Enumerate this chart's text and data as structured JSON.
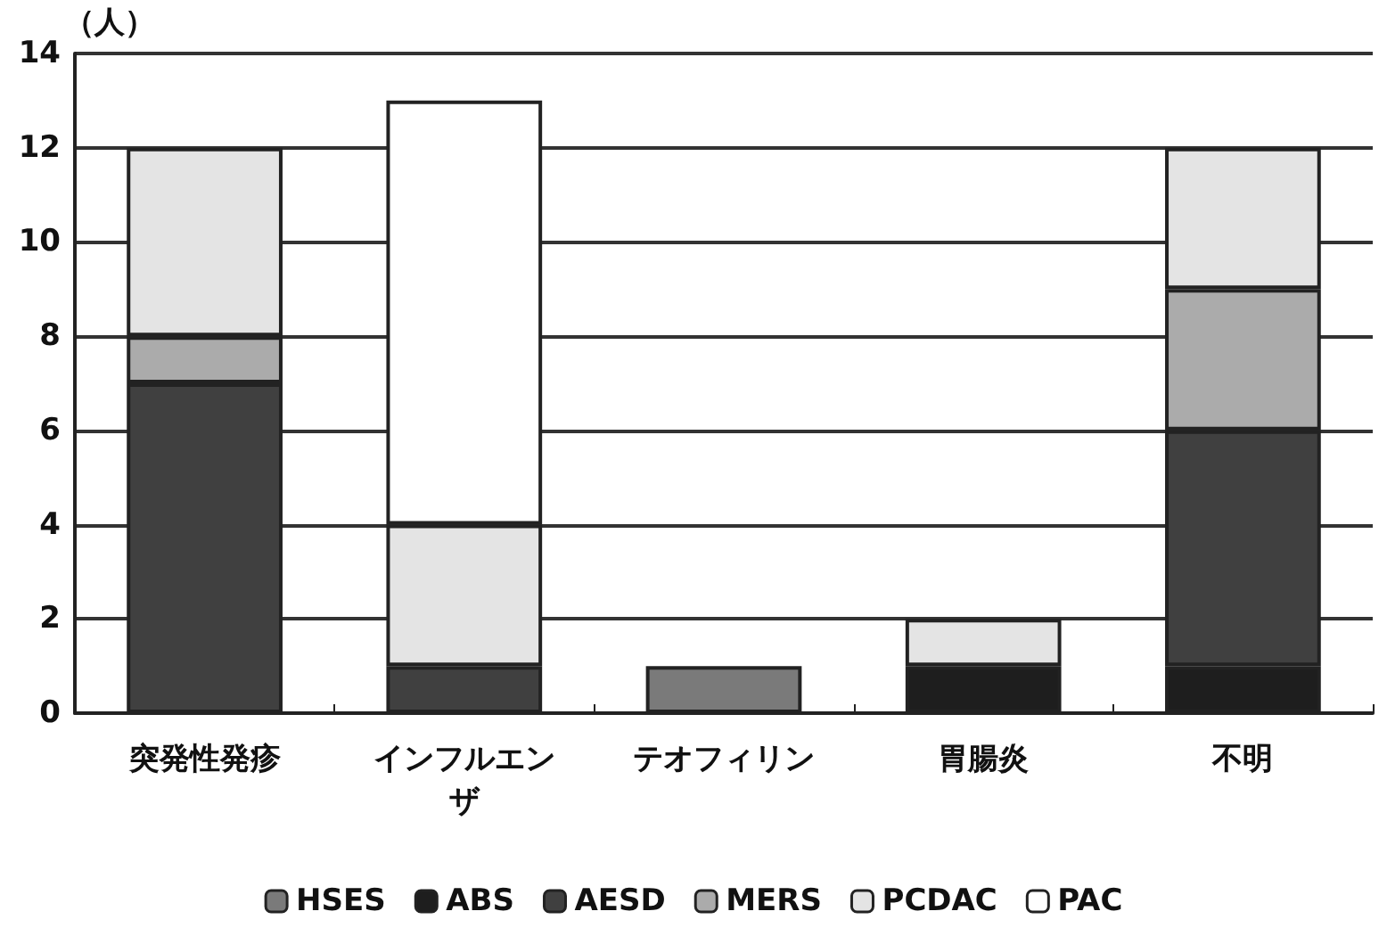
{
  "chart_data": {
    "type": "bar",
    "stacked": true,
    "ylabel": "（人）",
    "categories": [
      "突発性発疹",
      "インフルエンザ",
      "テオフィリン",
      "胃腸炎",
      "不明"
    ],
    "series": [
      {
        "name": "HSES",
        "color": "#7a7a7a",
        "values": [
          0,
          0,
          1,
          0,
          0
        ]
      },
      {
        "name": "ABS",
        "color": "#1e1e1e",
        "values": [
          0,
          0,
          0,
          1,
          1
        ]
      },
      {
        "name": "AESD",
        "color": "#404040",
        "values": [
          7,
          1,
          0,
          0,
          5
        ]
      },
      {
        "name": "MERS",
        "color": "#ababab",
        "values": [
          1,
          0,
          0,
          0,
          3
        ]
      },
      {
        "name": "PCDAC",
        "color": "#e4e4e4",
        "values": [
          4,
          3,
          0,
          1,
          3
        ]
      },
      {
        "name": "PAC",
        "color": "#ffffff",
        "values": [
          0,
          9,
          0,
          0,
          0
        ]
      }
    ],
    "ylim": [
      0,
      14
    ],
    "yticks": [
      0,
      2,
      4,
      6,
      8,
      10,
      12,
      14
    ],
    "grid": "y",
    "legend": "bottom"
  }
}
